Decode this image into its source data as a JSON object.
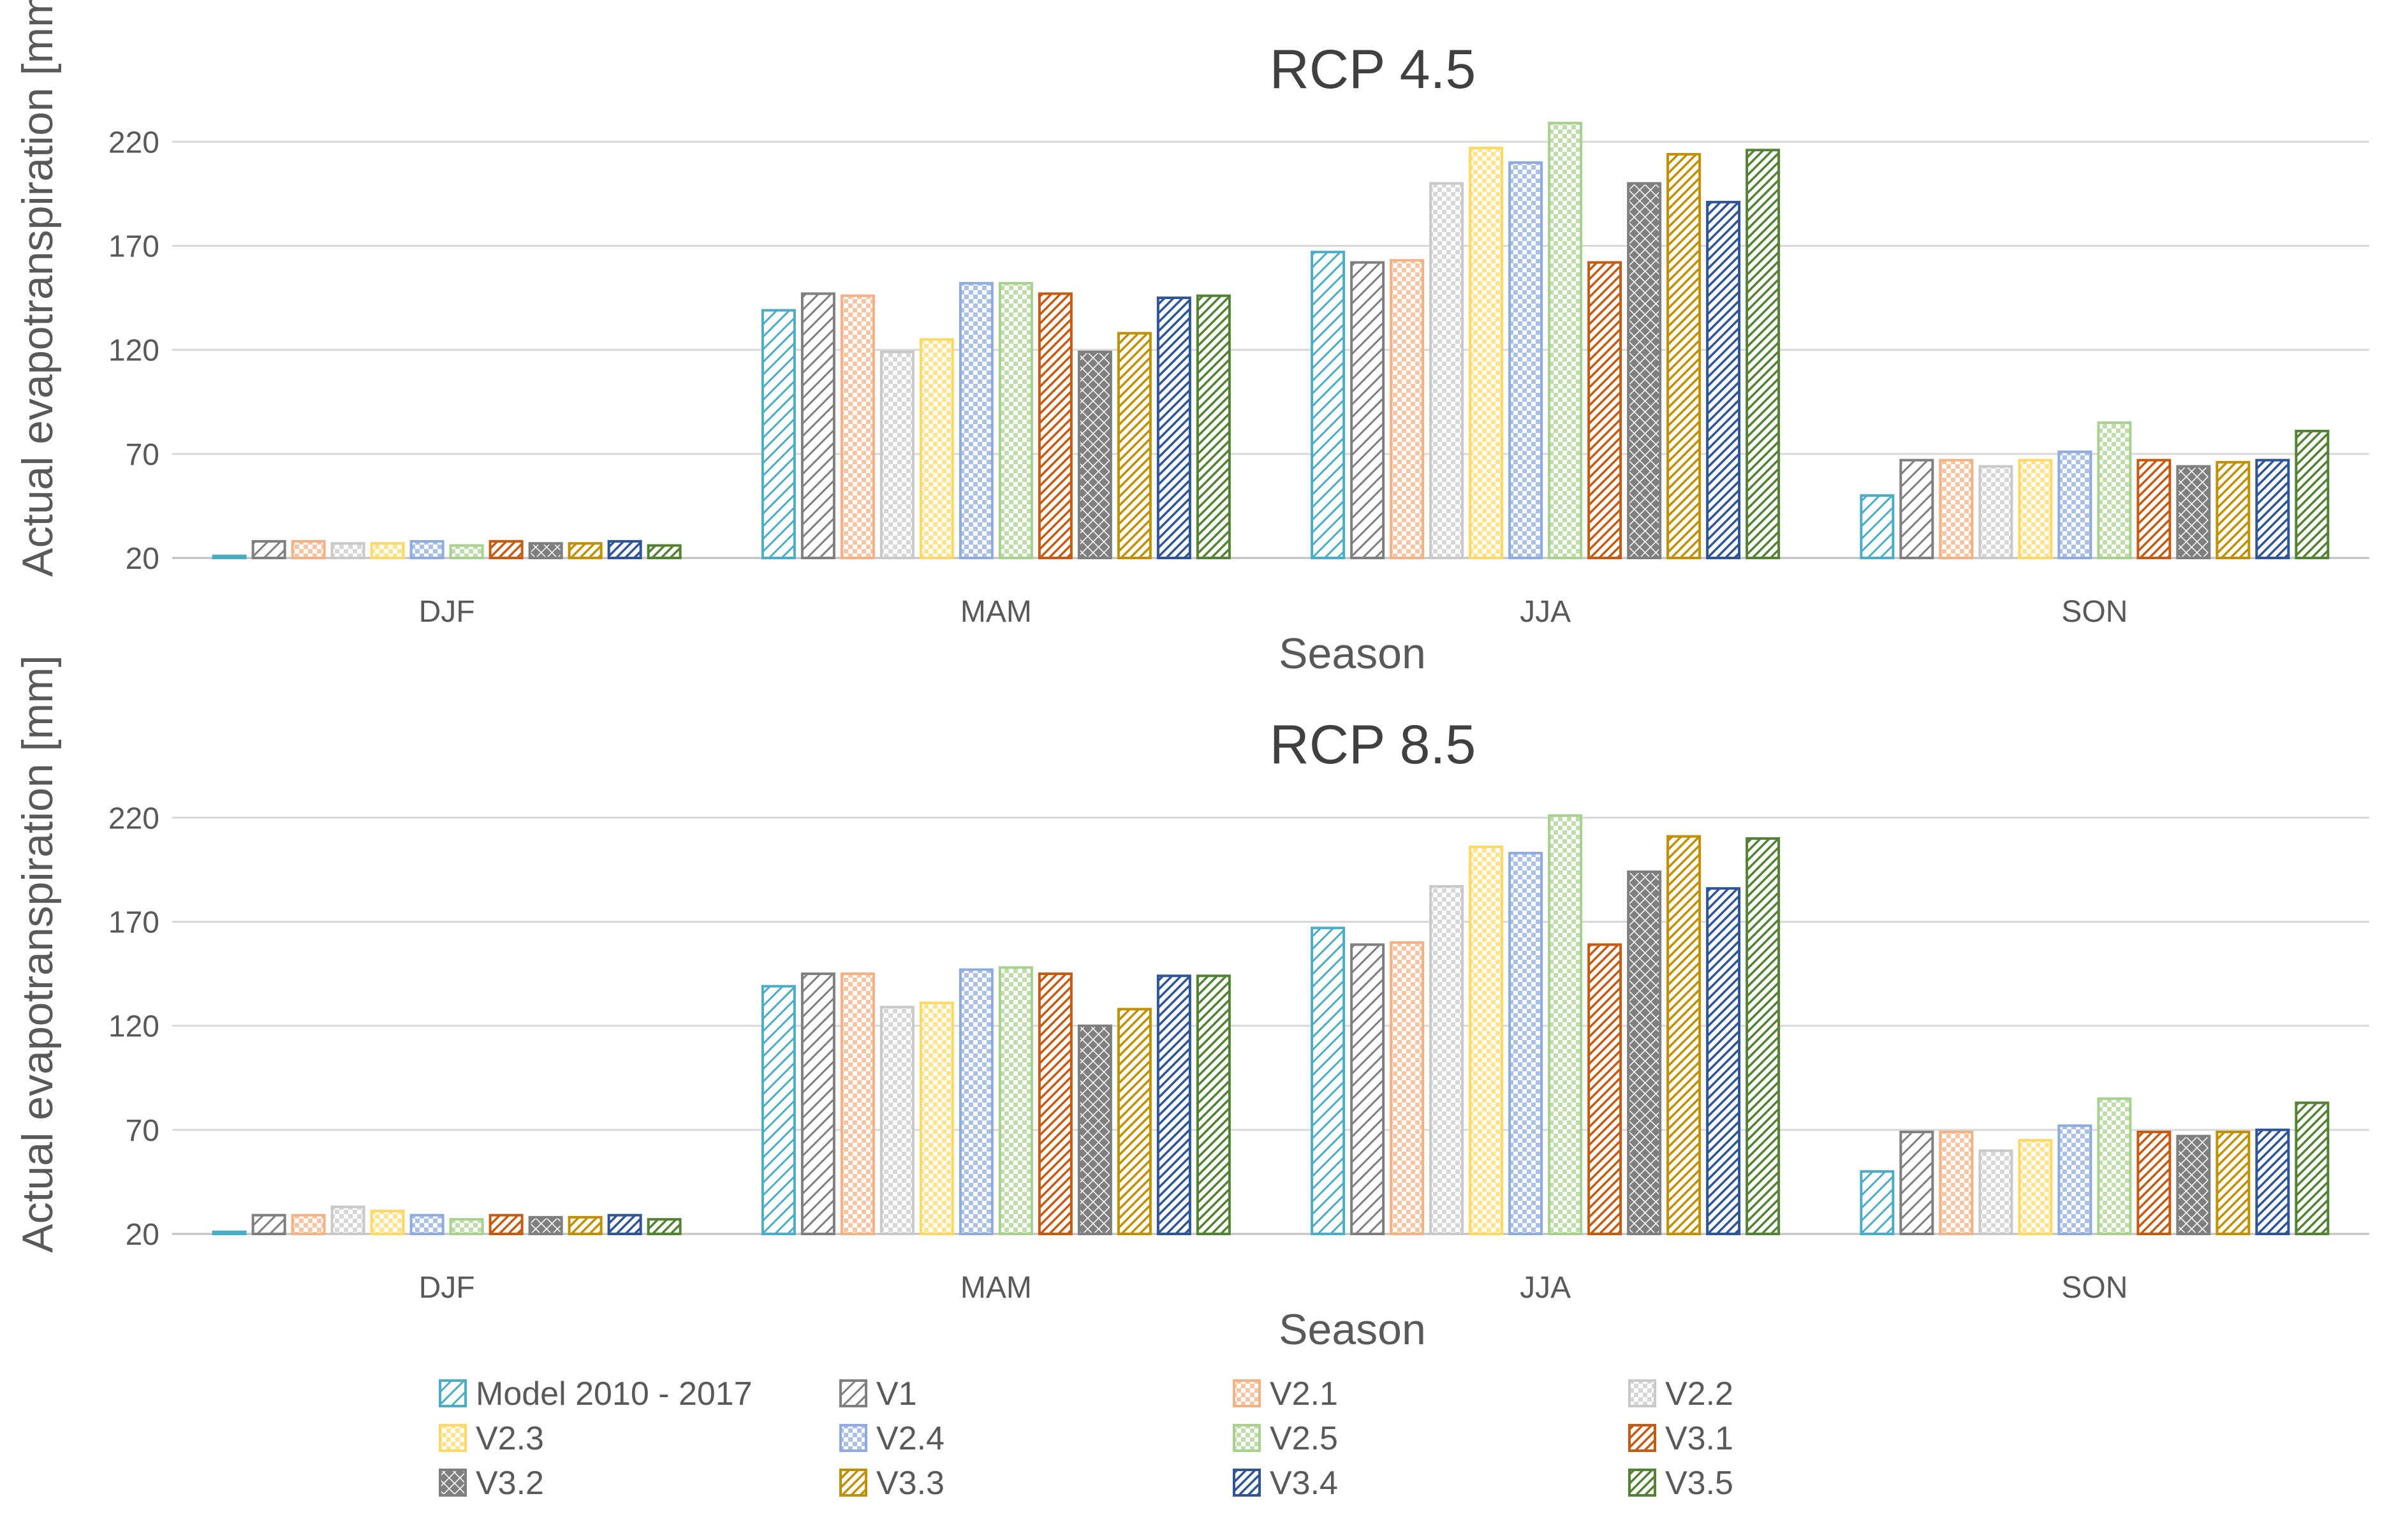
{
  "chart_data": [
    {
      "type": "bar",
      "title": "RCP 4.5",
      "xlabel": "Season",
      "ylabel": "Actual evapotranspiration [mm]",
      "ylim": [
        20,
        240
      ],
      "yticks": [
        20,
        70,
        120,
        170,
        220
      ],
      "grid": true,
      "legend_position": "bottom",
      "categories": [
        "DJF",
        "MAM",
        "JJA",
        "SON"
      ],
      "series": [
        {
          "name": "Model 2010 - 2017",
          "values": [
            21,
            139,
            167,
            50
          ]
        },
        {
          "name": "V1",
          "values": [
            28,
            147,
            162,
            67
          ]
        },
        {
          "name": "V2.1",
          "values": [
            28,
            146,
            163,
            67
          ]
        },
        {
          "name": "V2.2",
          "values": [
            27,
            119,
            200,
            64
          ]
        },
        {
          "name": "V2.3",
          "values": [
            27,
            125,
            217,
            67
          ]
        },
        {
          "name": "V2.4",
          "values": [
            28,
            152,
            210,
            71
          ]
        },
        {
          "name": "V2.5",
          "values": [
            26,
            152,
            229,
            85
          ]
        },
        {
          "name": "V3.1",
          "values": [
            28,
            147,
            162,
            67
          ]
        },
        {
          "name": "V3.2",
          "values": [
            27,
            119,
            200,
            64
          ]
        },
        {
          "name": "V3.3",
          "values": [
            27,
            128,
            214,
            66
          ]
        },
        {
          "name": "V3.4",
          "values": [
            28,
            145,
            191,
            67
          ]
        },
        {
          "name": "V3.5",
          "values": [
            26,
            146,
            216,
            81
          ]
        }
      ]
    },
    {
      "type": "bar",
      "title": "RCP 8.5",
      "xlabel": "Season",
      "ylabel": "Actual evapotranspiration [mm]",
      "ylim": [
        20,
        240
      ],
      "yticks": [
        20,
        70,
        120,
        170,
        220
      ],
      "grid": true,
      "legend_position": "bottom",
      "categories": [
        "DJF",
        "MAM",
        "JJA",
        "SON"
      ],
      "series": [
        {
          "name": "Model 2010 - 2017",
          "values": [
            21,
            139,
            167,
            50
          ]
        },
        {
          "name": "V1",
          "values": [
            29,
            145,
            159,
            69
          ]
        },
        {
          "name": "V2.1",
          "values": [
            29,
            145,
            160,
            69
          ]
        },
        {
          "name": "V2.2",
          "values": [
            33,
            129,
            187,
            60
          ]
        },
        {
          "name": "V2.3",
          "values": [
            31,
            131,
            206,
            65
          ]
        },
        {
          "name": "V2.4",
          "values": [
            29,
            147,
            203,
            72
          ]
        },
        {
          "name": "V2.5",
          "values": [
            27,
            148,
            221,
            85
          ]
        },
        {
          "name": "V3.1",
          "values": [
            29,
            145,
            159,
            69
          ]
        },
        {
          "name": "V3.2",
          "values": [
            28,
            120,
            194,
            67
          ]
        },
        {
          "name": "V3.3",
          "values": [
            28,
            128,
            211,
            69
          ]
        },
        {
          "name": "V3.4",
          "values": [
            29,
            144,
            186,
            70
          ]
        },
        {
          "name": "V3.5",
          "values": [
            27,
            144,
            210,
            83
          ]
        }
      ]
    }
  ],
  "series_style": [
    {
      "name": "Model 2010 - 2017",
      "color": "#4bacc6",
      "pattern": "diag"
    },
    {
      "name": "V1",
      "color": "#7f7f7f",
      "pattern": "diag"
    },
    {
      "name": "V2.1",
      "color": "#f4b183",
      "pattern": "check"
    },
    {
      "name": "V2.2",
      "color": "#c9c9c9",
      "pattern": "check"
    },
    {
      "name": "V2.3",
      "color": "#ffd966",
      "pattern": "check"
    },
    {
      "name": "V2.4",
      "color": "#8faadc",
      "pattern": "check"
    },
    {
      "name": "V2.5",
      "color": "#a9d18e",
      "pattern": "check"
    },
    {
      "name": "V3.1",
      "color": "#c55a11",
      "pattern": "diagdense"
    },
    {
      "name": "V3.2",
      "color": "#7f7f7f",
      "pattern": "cross"
    },
    {
      "name": "V3.3",
      "color": "#bf9000",
      "pattern": "diagdense"
    },
    {
      "name": "V3.4",
      "color": "#2f5597",
      "pattern": "diagdense"
    },
    {
      "name": "V3.5",
      "color": "#548235",
      "pattern": "diagdense"
    }
  ]
}
